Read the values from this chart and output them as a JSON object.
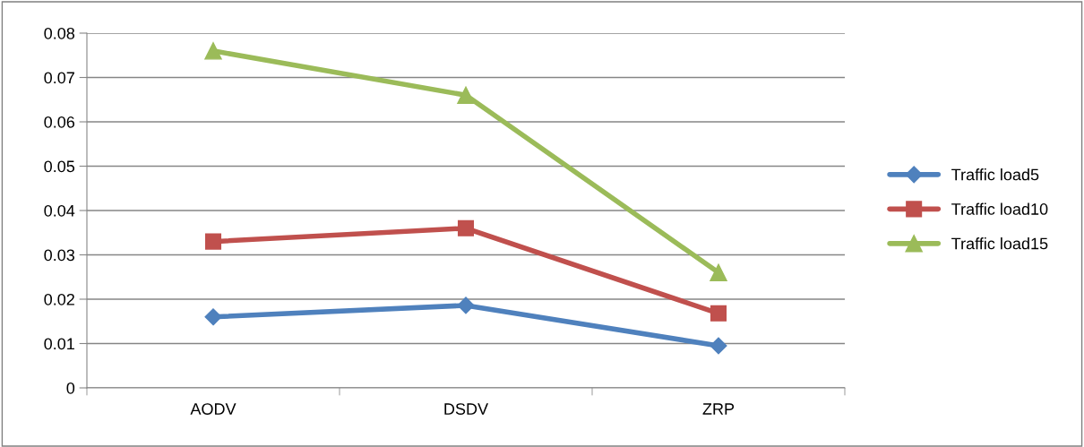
{
  "chart_data": {
    "type": "line",
    "categories": [
      "AODV",
      "DSDV",
      "ZRP"
    ],
    "series": [
      {
        "name": "Traffic load5",
        "color": "#4f81bd",
        "marker": "diamond",
        "values": [
          0.016,
          0.0186,
          0.0095
        ]
      },
      {
        "name": "Traffic load10",
        "color": "#c0504d",
        "marker": "square",
        "values": [
          0.033,
          0.036,
          0.0168
        ]
      },
      {
        "name": "Traffic load15",
        "color": "#9bbb59",
        "marker": "triangle",
        "values": [
          0.076,
          0.066,
          0.026
        ]
      }
    ],
    "ylim": [
      0,
      0.08
    ],
    "yticks": [
      {
        "value": 0,
        "label": "0"
      },
      0.01,
      0.02,
      0.03,
      0.04,
      0.05,
      0.06,
      0.07,
      0.08
    ],
    "grid": "y",
    "legend": "right",
    "line_style": "solid"
  }
}
